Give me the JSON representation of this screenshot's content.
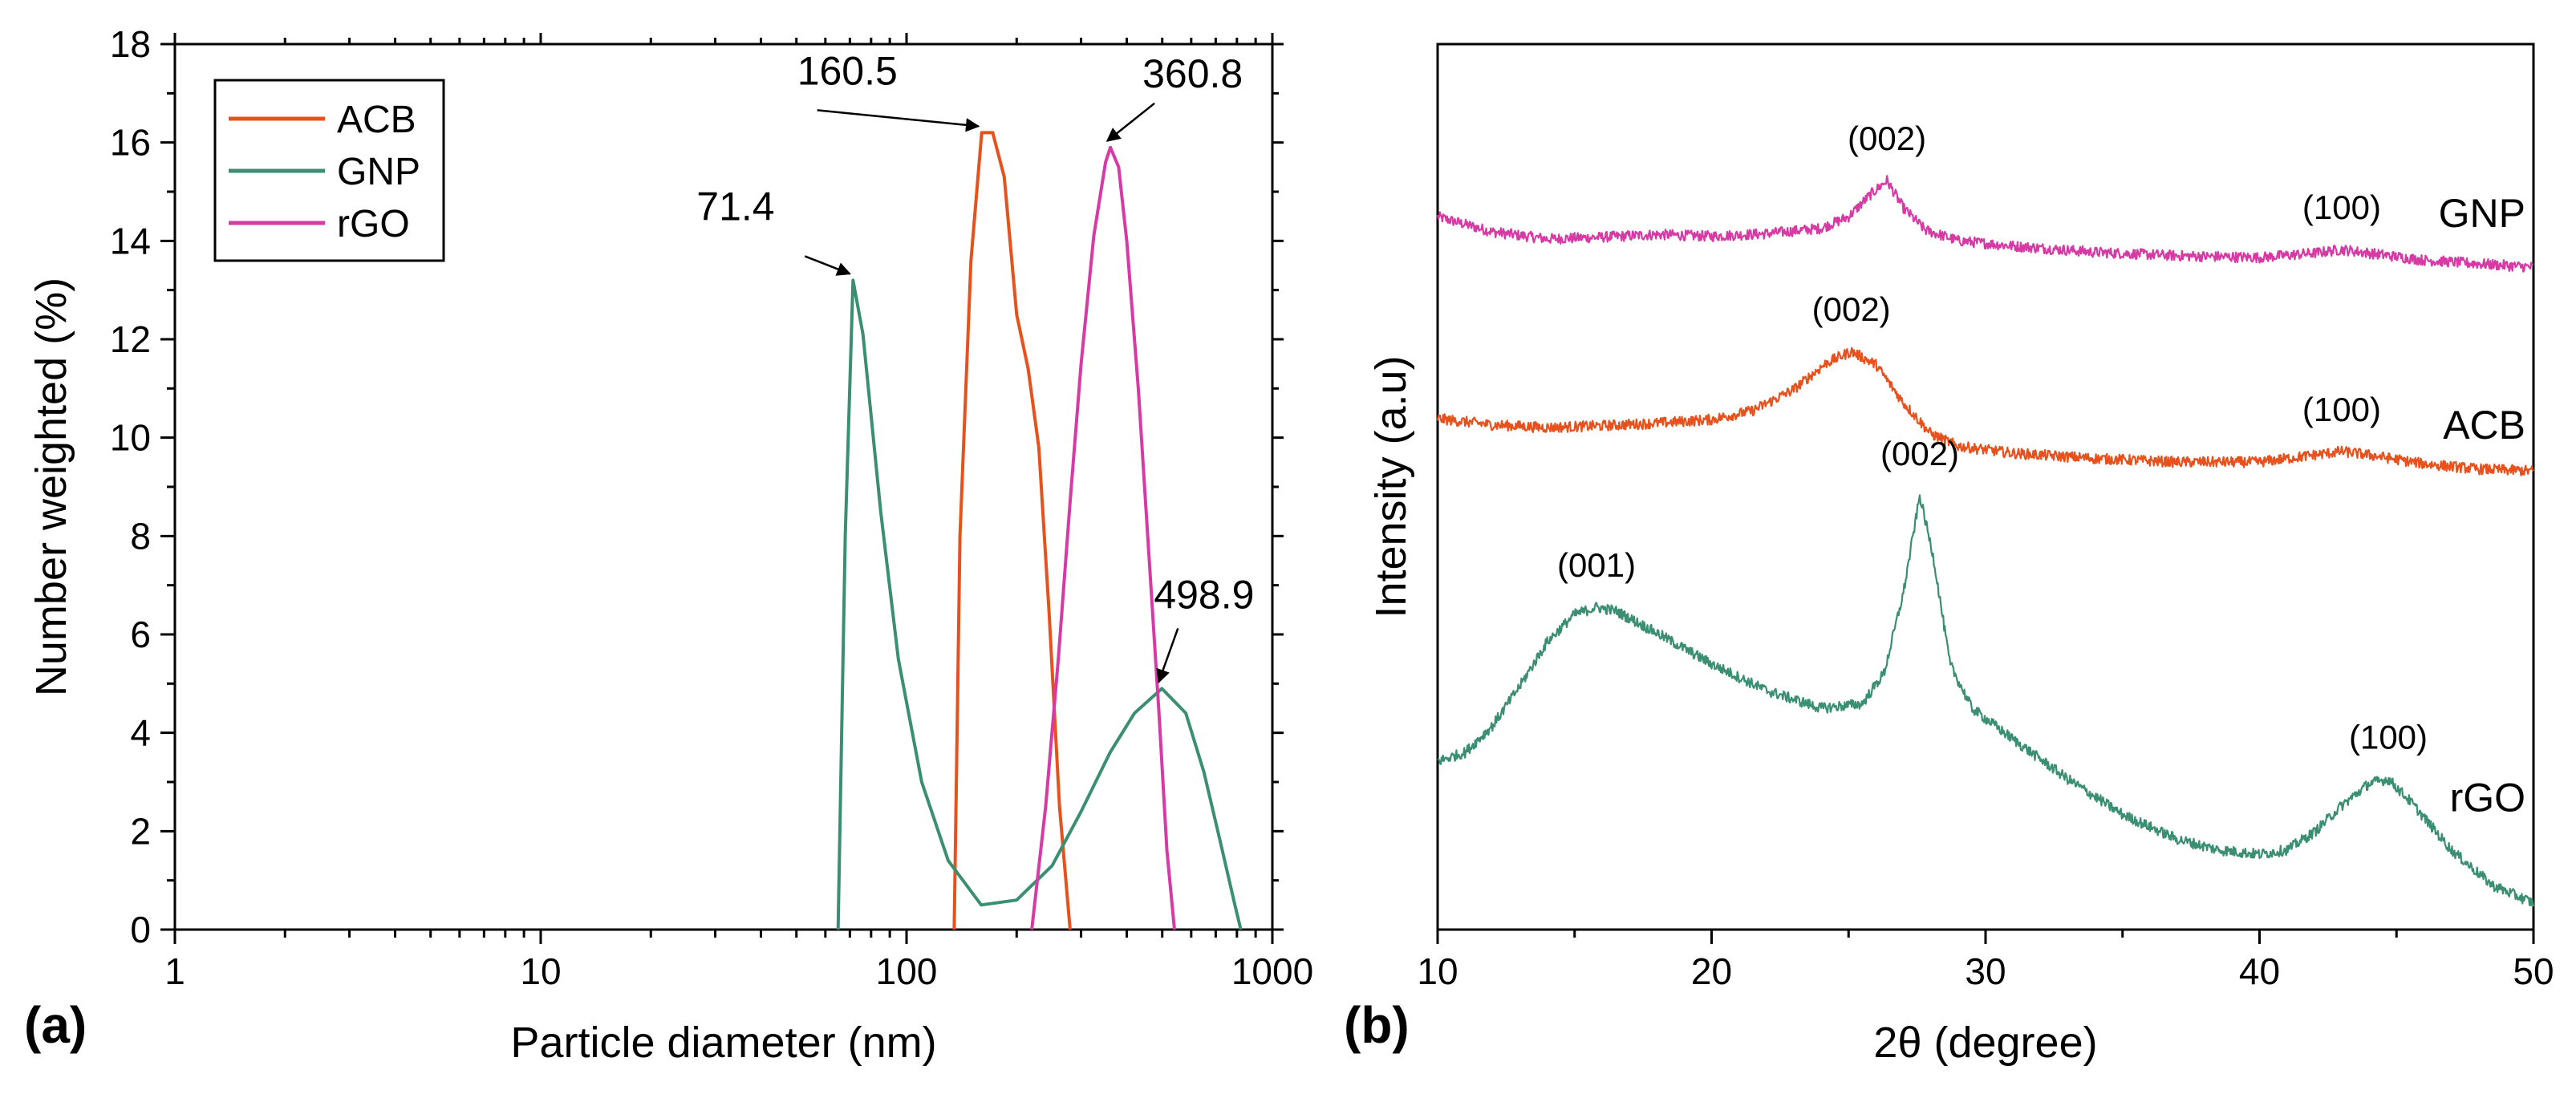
{
  "chart_data": [
    {
      "panel": "(a)",
      "type": "line",
      "x_scale": "log",
      "xlabel": "Particle diameter (nm)",
      "ylabel": "Number weighted (%)",
      "xlim": [
        1,
        1000
      ],
      "ylim": [
        0,
        18
      ],
      "x_ticks": [
        1,
        10,
        100,
        1000
      ],
      "x_tick_labels": [
        "1",
        "10",
        "100",
        "1000"
      ],
      "y_ticks": [
        0,
        2,
        4,
        6,
        8,
        10,
        12,
        14,
        16,
        18
      ],
      "y_tick_labels": [
        "0",
        "2",
        "4",
        "6",
        "8",
        "10",
        "12",
        "14",
        "16",
        "18"
      ],
      "legend_position": "top-left",
      "series": [
        {
          "name": "ACB",
          "color": "#e8501c",
          "x": [
            135,
            140,
            150,
            160.5,
            172,
            185,
            200,
            215,
            230,
            245,
            262,
            280
          ],
          "y": [
            0,
            8,
            13.6,
            16.2,
            16.2,
            15.3,
            12.5,
            11.4,
            9.8,
            6.5,
            2.5,
            0
          ]
        },
        {
          "name": "GNP",
          "color": "#3a8f72",
          "x": [
            65,
            68,
            71.4,
            76,
            85,
            95,
            110,
            130,
            160,
            200,
            250,
            300,
            360,
            420,
            498.9,
            580,
            650,
            720,
            790,
            820
          ],
          "y": [
            0,
            8,
            13.2,
            12.1,
            8.5,
            5.5,
            3.0,
            1.4,
            0.5,
            0.6,
            1.3,
            2.4,
            3.6,
            4.4,
            4.9,
            4.4,
            3.2,
            1.8,
            0.5,
            0
          ]
        },
        {
          "name": "rGO",
          "color": "#d83aa5",
          "x": [
            220,
            240,
            260,
            280,
            300,
            325,
            350,
            360.8,
            380,
            400,
            430,
            460,
            490,
            515,
            540
          ],
          "y": [
            0,
            2.5,
            5.5,
            8.7,
            11.5,
            14.1,
            15.6,
            15.9,
            15.5,
            14.0,
            11.0,
            7.6,
            4.4,
            1.6,
            0
          ]
        }
      ],
      "annotations": [
        {
          "text": "160.5",
          "x": 160.5,
          "y": 16.2
        },
        {
          "text": "360.8",
          "x": 360.8,
          "y": 15.9
        },
        {
          "text": "71.4",
          "x": 71.4,
          "y": 13.2
        },
        {
          "text": "498.9",
          "x": 498.9,
          "y": 4.9
        }
      ]
    },
    {
      "panel": "(b)",
      "type": "line",
      "xlabel": "2θ (degree)",
      "ylabel": "Intensity (a.u)",
      "xlim": [
        10,
        50
      ],
      "ylim": [
        0,
        100
      ],
      "y_tick_labels_shown": false,
      "x_ticks": [
        10,
        20,
        30,
        40,
        50
      ],
      "x_tick_labels": [
        "10",
        "20",
        "30",
        "40",
        "50"
      ],
      "series": [
        {
          "name": "GNP",
          "color": "#d83aa5",
          "x": [
            10,
            12,
            14,
            16,
            18,
            20,
            22,
            24,
            25,
            25.8,
            26.4,
            27,
            27.8,
            29,
            31,
            34,
            37,
            40,
            42,
            43,
            44,
            46,
            48,
            50
          ],
          "y": [
            80.5,
            78.8,
            78.0,
            78.2,
            78.5,
            78.3,
            78.6,
            79.2,
            80.5,
            83.0,
            84.6,
            81.5,
            79.0,
            77.8,
            77.2,
            76.5,
            76.1,
            75.9,
            76.4,
            76.8,
            76.4,
            75.6,
            75.2,
            74.8
          ]
        },
        {
          "name": "ACB",
          "color": "#e8501c",
          "x": [
            10,
            12,
            14,
            16,
            18,
            20,
            21.5,
            23,
            24.2,
            25.1,
            26,
            27,
            28,
            29,
            31,
            34,
            37,
            40,
            42,
            43,
            44,
            46,
            48,
            50
          ],
          "y": [
            57.7,
            57.0,
            56.7,
            56.9,
            57.2,
            57.6,
            58.6,
            61.0,
            64.0,
            65.3,
            63.8,
            59.5,
            56.0,
            54.6,
            53.8,
            53.2,
            52.8,
            52.8,
            53.6,
            54.0,
            53.6,
            52.6,
            52.0,
            51.8
          ]
        },
        {
          "name": "rGO",
          "color": "#3a8f72",
          "x": [
            10,
            11,
            12,
            13,
            14,
            15,
            15.8,
            16.5,
            18,
            20,
            22,
            24,
            25.5,
            26.3,
            27,
            27.6,
            28.1,
            28.7,
            29.5,
            31,
            33,
            35,
            37,
            38.5,
            40,
            41,
            42,
            43,
            44,
            44.7,
            45.5,
            47,
            48.5,
            50
          ],
          "y": [
            19.0,
            20.0,
            23.0,
            27.5,
            32.5,
            35.6,
            36.4,
            36.0,
            33.5,
            30.0,
            27.0,
            25.0,
            25.5,
            29.0,
            38.0,
            49.0,
            42.0,
            30.0,
            25.0,
            21.5,
            17.0,
            13.0,
            10.2,
            9.0,
            8.5,
            9.0,
            11.0,
            14.0,
            16.5,
            17.0,
            14.5,
            9.0,
            5.0,
            3.0
          ]
        }
      ],
      "peak_labels": [
        {
          "text": "(002)",
          "x": 26.4,
          "y": 84.6,
          "series": "GNP"
        },
        {
          "text": "(100)",
          "x": 43,
          "y": 76.8,
          "series": "GNP"
        },
        {
          "text": "(002)",
          "x": 25.1,
          "y": 65.3,
          "series": "ACB"
        },
        {
          "text": "(100)",
          "x": 43,
          "y": 54.0,
          "series": "ACB"
        },
        {
          "text": "(001)",
          "x": 15.8,
          "y": 36.4,
          "series": "rGO"
        },
        {
          "text": "(002)",
          "x": 27.6,
          "y": 49.0,
          "series": "rGO"
        },
        {
          "text": "(100)",
          "x": 44.7,
          "y": 17.0,
          "series": "rGO"
        }
      ]
    }
  ]
}
